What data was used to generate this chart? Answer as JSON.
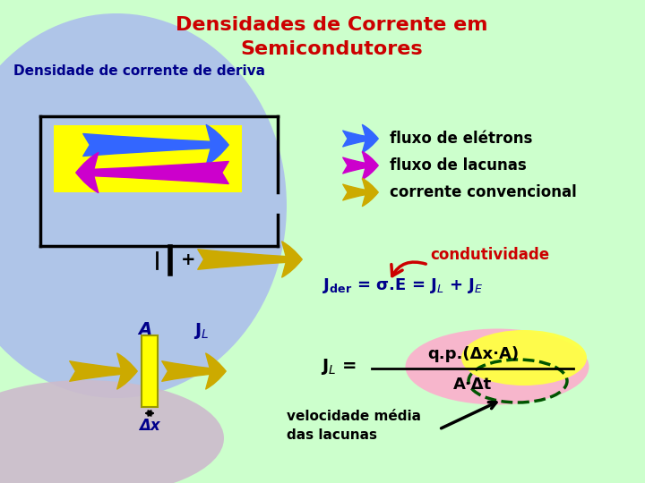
{
  "title_line1": "Densidades de Corrente em",
  "title_line2": "Semicondutores",
  "title_color": "#cc0000",
  "title_fontsize": 16,
  "subtitle": "Densidade de corrente de deriva",
  "subtitle_color": "#00008b",
  "subtitle_fontsize": 11,
  "bg_color_main": "#ccffcc",
  "legend_items": [
    {
      "label": "fluxo de elétrons",
      "color": "#3366ff"
    },
    {
      "label": "fluxo de lacunas",
      "color": "#cc00cc"
    },
    {
      "label": "corrente convencional",
      "color": "#ccaa00"
    }
  ],
  "box_fill": "#ffff00",
  "box_stroke": "#000000",
  "arrow_electron_color": "#3366ff",
  "arrow_hole_color": "#cc00cc",
  "arrow_conv_color": "#ccaa00",
  "formula_color": "#00008b",
  "condutividade_color": "#cc0000",
  "label_color": "#00008b",
  "blue_blob_color": "#aabbee",
  "pink_blob_color": "#ccbbcc"
}
